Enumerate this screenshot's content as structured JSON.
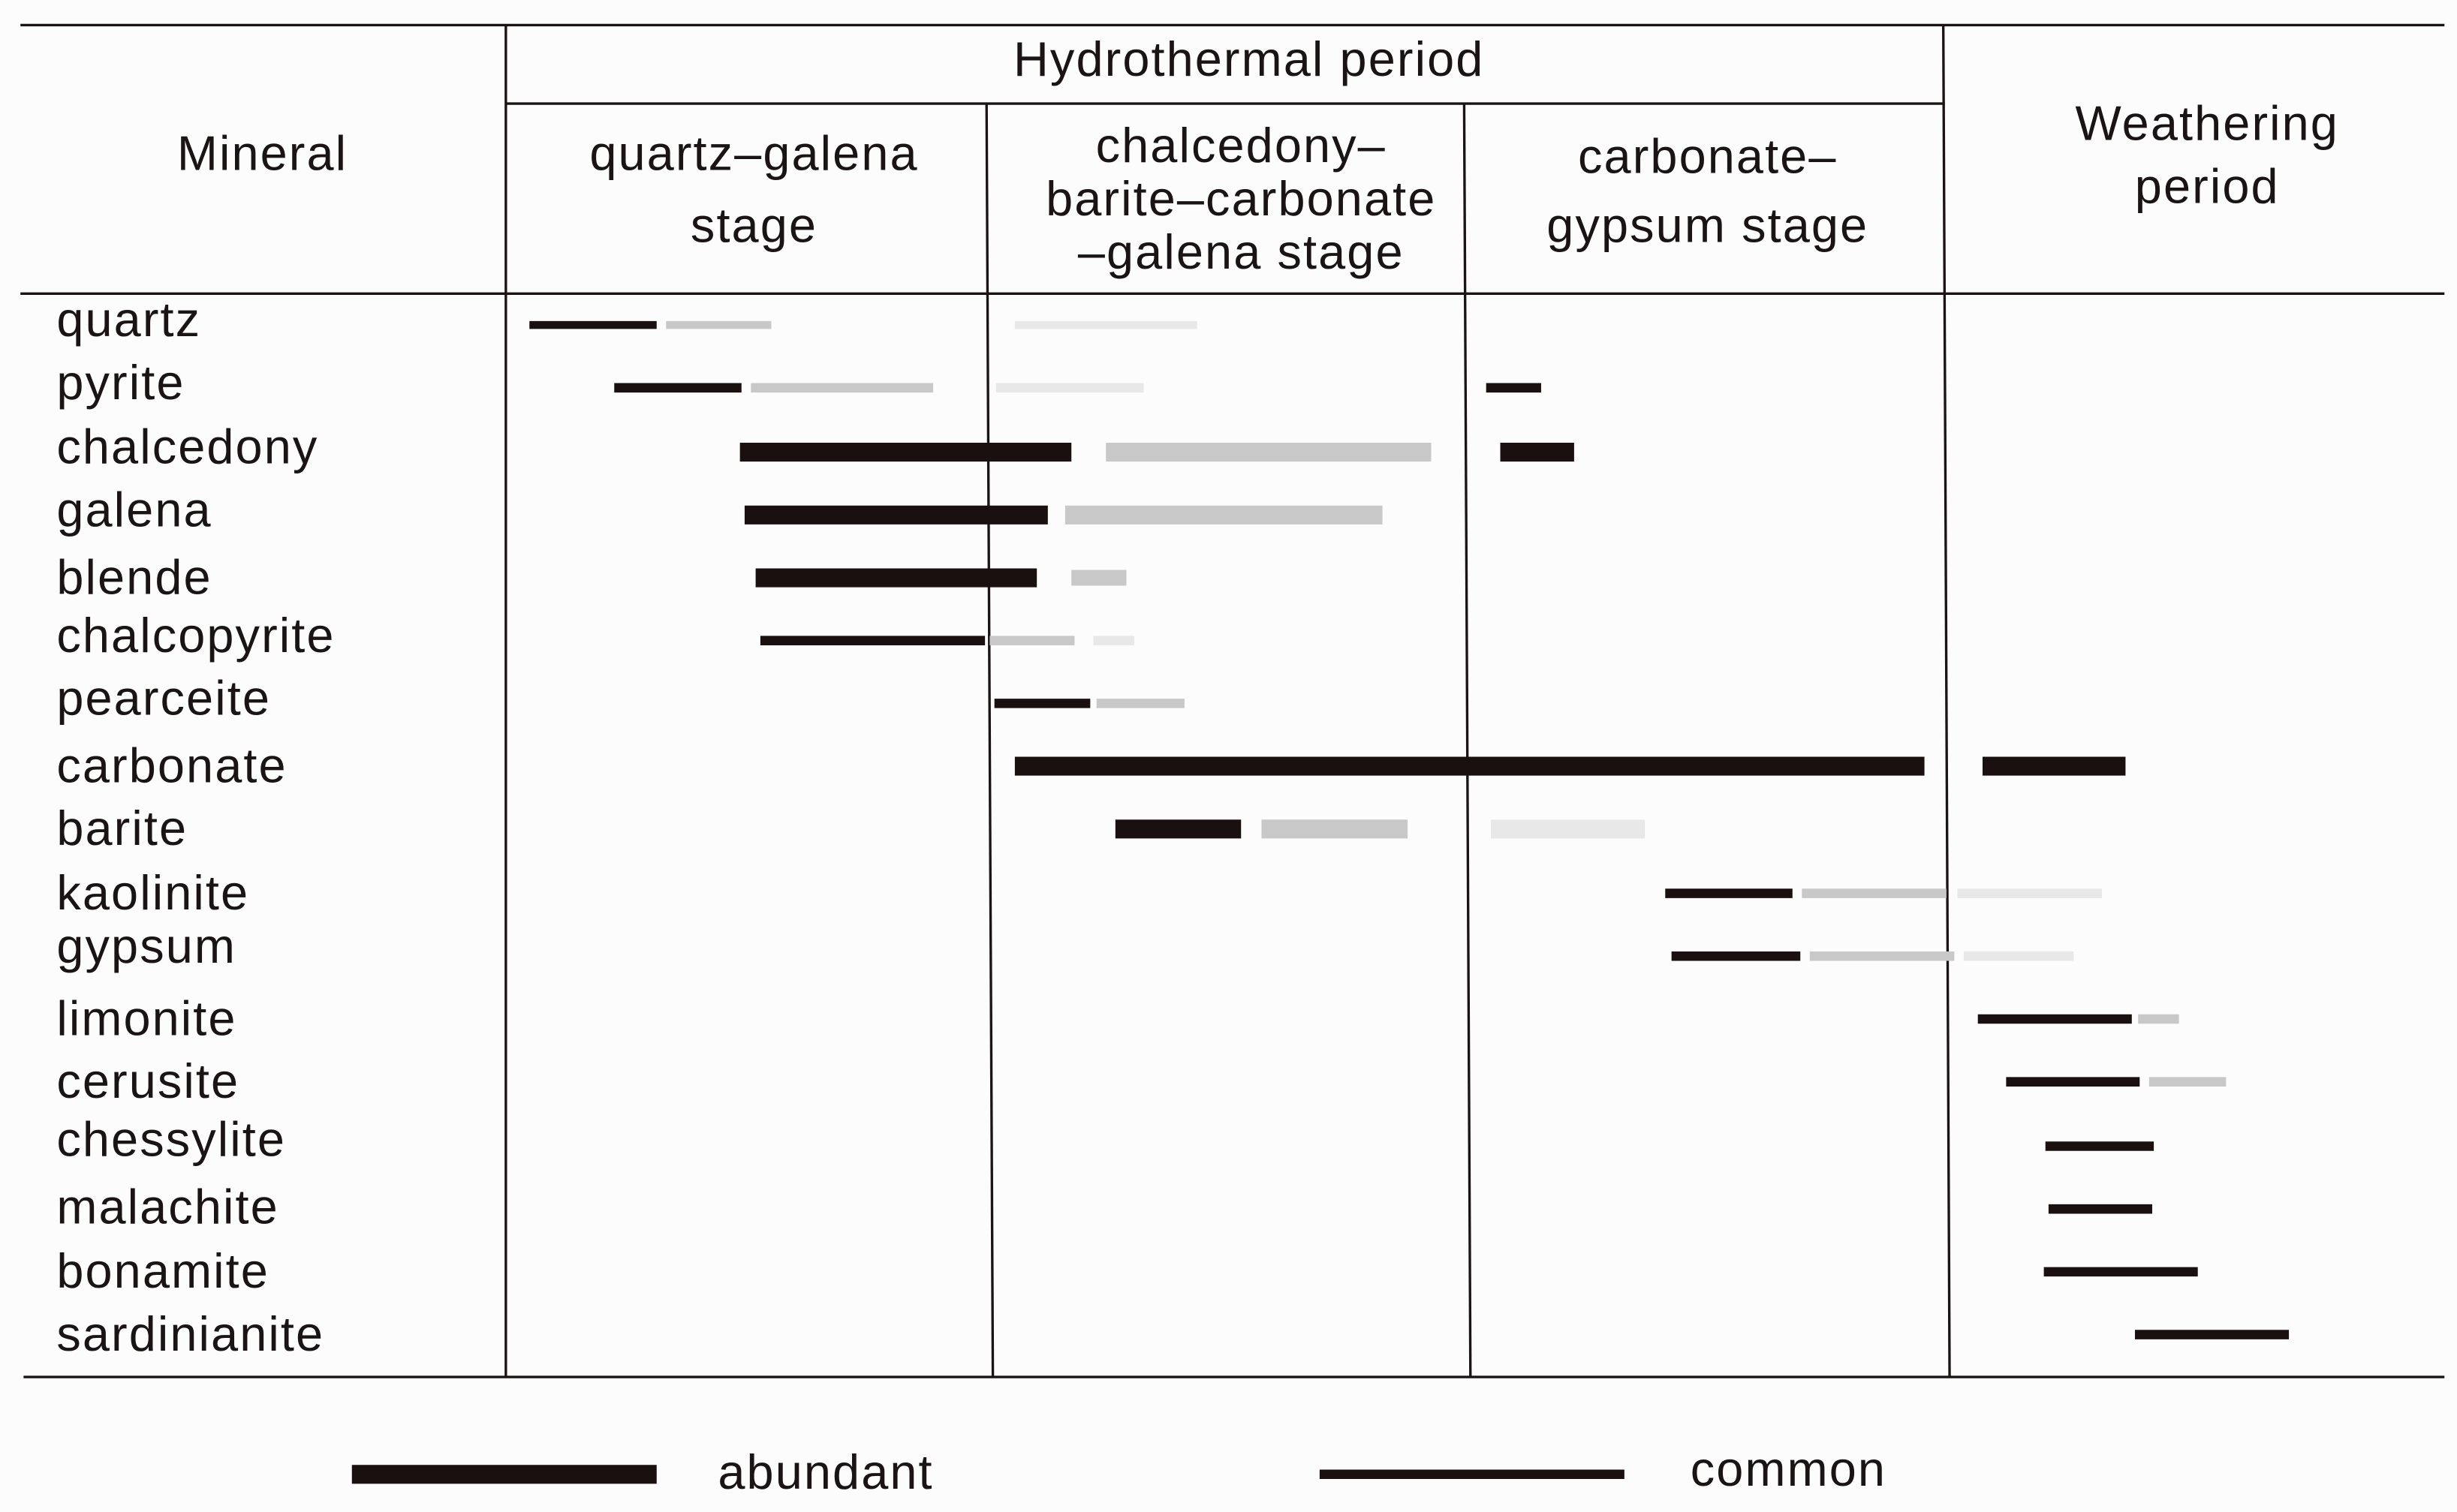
{
  "header": {
    "mineral": "Mineral",
    "hydrothermal_period": "Hydrothermal period",
    "stages": [
      [
        "quartz–galena",
        "stage"
      ],
      [
        "chalcedony–",
        "barite–carbonate",
        "–galena stage"
      ],
      [
        "carbonate–",
        "gypsum stage"
      ]
    ],
    "weathering_period": [
      "Weathering",
      "period"
    ]
  },
  "minerals": [
    "quartz",
    "pyrite",
    "chalcedony",
    "galena",
    "blende",
    "chalcopyrite",
    "pearceite",
    "carbonate",
    "barite",
    "kaolinite",
    "gypsum",
    "limonite",
    "cerusite",
    "chessylite",
    "malachite",
    "bonamite",
    "sardinianite"
  ],
  "legend": [
    "abundant",
    "common"
  ]
}
